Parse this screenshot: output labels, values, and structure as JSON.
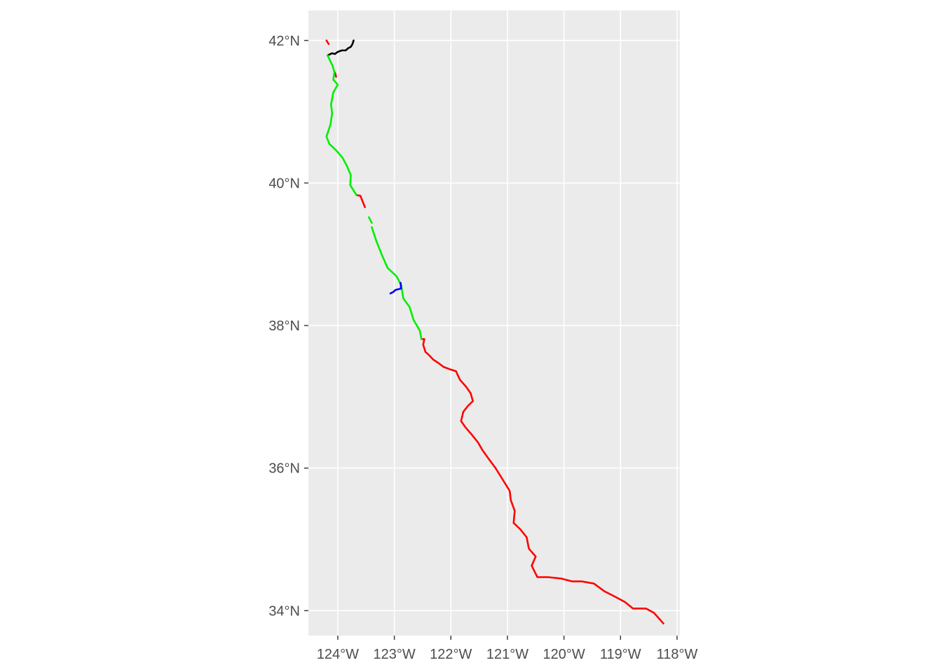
{
  "chart_data": {
    "type": "line",
    "title": "",
    "xlabel": "",
    "ylabel": "",
    "xlim": [
      -124.52,
      -117.95
    ],
    "ylim": [
      33.65,
      42.42
    ],
    "grid": true,
    "x_ticks": [
      {
        "value": -124,
        "label": "124°W"
      },
      {
        "value": -123,
        "label": "123°W"
      },
      {
        "value": -122,
        "label": "122°W"
      },
      {
        "value": -121,
        "label": "121°W"
      },
      {
        "value": -120,
        "label": "120°W"
      },
      {
        "value": -119,
        "label": "119°W"
      },
      {
        "value": -118,
        "label": "118°W"
      }
    ],
    "y_ticks": [
      {
        "value": 34,
        "label": "34°N"
      },
      {
        "value": 36,
        "label": "36°N"
      },
      {
        "value": 38,
        "label": "38°N"
      },
      {
        "value": 40,
        "label": "40°N"
      },
      {
        "value": 42,
        "label": "42°N"
      }
    ],
    "series": [
      {
        "color": "#000000",
        "segments": [
          [
            [
              -124.18,
              41.79
            ],
            [
              -124.1,
              41.82
            ],
            [
              -124.05,
              41.81
            ],
            [
              -124.0,
              41.84
            ],
            [
              -123.93,
              41.86
            ],
            [
              -123.86,
              41.86
            ],
            [
              -123.82,
              41.89
            ],
            [
              -123.77,
              41.91
            ],
            [
              -123.74,
              41.95
            ],
            [
              -123.72,
              42.0
            ]
          ]
        ]
      },
      {
        "color": "#ff0000",
        "segments": [
          [
            [
              -124.2,
              42.0
            ],
            [
              -124.16,
              41.95
            ]
          ],
          [
            [
              -124.05,
              41.55
            ],
            [
              -124.03,
              41.49
            ]
          ],
          [
            [
              -123.67,
              39.83
            ],
            [
              -123.6,
              39.82
            ],
            [
              -123.56,
              39.74
            ],
            [
              -123.52,
              39.66
            ]
          ],
          [
            [
              -122.52,
              37.81
            ],
            [
              -122.47,
              37.81
            ],
            [
              -122.49,
              37.73
            ],
            [
              -122.45,
              37.63
            ],
            [
              -122.38,
              37.58
            ],
            [
              -122.31,
              37.52
            ],
            [
              -122.23,
              37.48
            ],
            [
              -122.13,
              37.42
            ],
            [
              -122.03,
              37.39
            ],
            [
              -121.91,
              37.36
            ],
            [
              -121.84,
              37.24
            ],
            [
              -121.73,
              37.14
            ],
            [
              -121.65,
              37.05
            ],
            [
              -121.61,
              36.94
            ],
            [
              -121.7,
              36.87
            ],
            [
              -121.78,
              36.79
            ],
            [
              -121.82,
              36.66
            ],
            [
              -121.74,
              36.57
            ],
            [
              -121.63,
              36.47
            ],
            [
              -121.52,
              36.36
            ],
            [
              -121.44,
              36.25
            ],
            [
              -121.34,
              36.14
            ],
            [
              -121.21,
              36.0
            ],
            [
              -121.1,
              35.86
            ],
            [
              -120.96,
              35.68
            ],
            [
              -120.94,
              35.55
            ],
            [
              -120.87,
              35.4
            ],
            [
              -120.89,
              35.23
            ],
            [
              -120.77,
              35.14
            ],
            [
              -120.66,
              35.03
            ],
            [
              -120.62,
              34.87
            ],
            [
              -120.5,
              34.76
            ],
            [
              -120.57,
              34.63
            ],
            [
              -120.47,
              34.47
            ],
            [
              -120.28,
              34.47
            ],
            [
              -120.05,
              34.45
            ],
            [
              -119.85,
              34.41
            ],
            [
              -119.68,
              34.41
            ],
            [
              -119.47,
              34.38
            ],
            [
              -119.28,
              34.27
            ],
            [
              -119.13,
              34.21
            ],
            [
              -118.92,
              34.12
            ],
            [
              -118.78,
              34.03
            ],
            [
              -118.55,
              34.03
            ],
            [
              -118.41,
              33.97
            ],
            [
              -118.24,
              33.82
            ]
          ]
        ]
      },
      {
        "color": "#00ee00",
        "segments": [
          [
            [
              -124.18,
              41.79
            ],
            [
              -124.09,
              41.64
            ],
            [
              -124.06,
              41.55
            ],
            [
              -124.08,
              41.45
            ],
            [
              -124.0,
              41.38
            ],
            [
              -124.08,
              41.27
            ],
            [
              -124.12,
              41.1
            ],
            [
              -124.1,
              40.98
            ],
            [
              -124.13,
              40.82
            ],
            [
              -124.2,
              40.65
            ],
            [
              -124.15,
              40.55
            ],
            [
              -124.02,
              40.45
            ],
            [
              -123.92,
              40.36
            ],
            [
              -123.84,
              40.24
            ],
            [
              -123.77,
              40.11
            ],
            [
              -123.78,
              39.97
            ],
            [
              -123.67,
              39.83
            ]
          ],
          [
            [
              -123.45,
              39.52
            ],
            [
              -123.4,
              39.44
            ]
          ],
          [
            [
              -123.4,
              39.38
            ],
            [
              -123.32,
              39.19
            ],
            [
              -123.22,
              38.99
            ],
            [
              -123.12,
              38.81
            ],
            [
              -122.96,
              38.69
            ],
            [
              -122.88,
              38.57
            ],
            [
              -122.84,
              38.38
            ],
            [
              -122.73,
              38.26
            ],
            [
              -122.66,
              38.08
            ],
            [
              -122.55,
              37.93
            ],
            [
              -122.52,
              37.81
            ]
          ]
        ]
      },
      {
        "color": "#0000ff",
        "segments": [
          [
            [
              -122.89,
              38.6
            ],
            [
              -122.88,
              38.52
            ],
            [
              -122.98,
              38.5
            ],
            [
              -123.02,
              38.47
            ],
            [
              -123.07,
              38.45
            ]
          ]
        ]
      }
    ]
  }
}
